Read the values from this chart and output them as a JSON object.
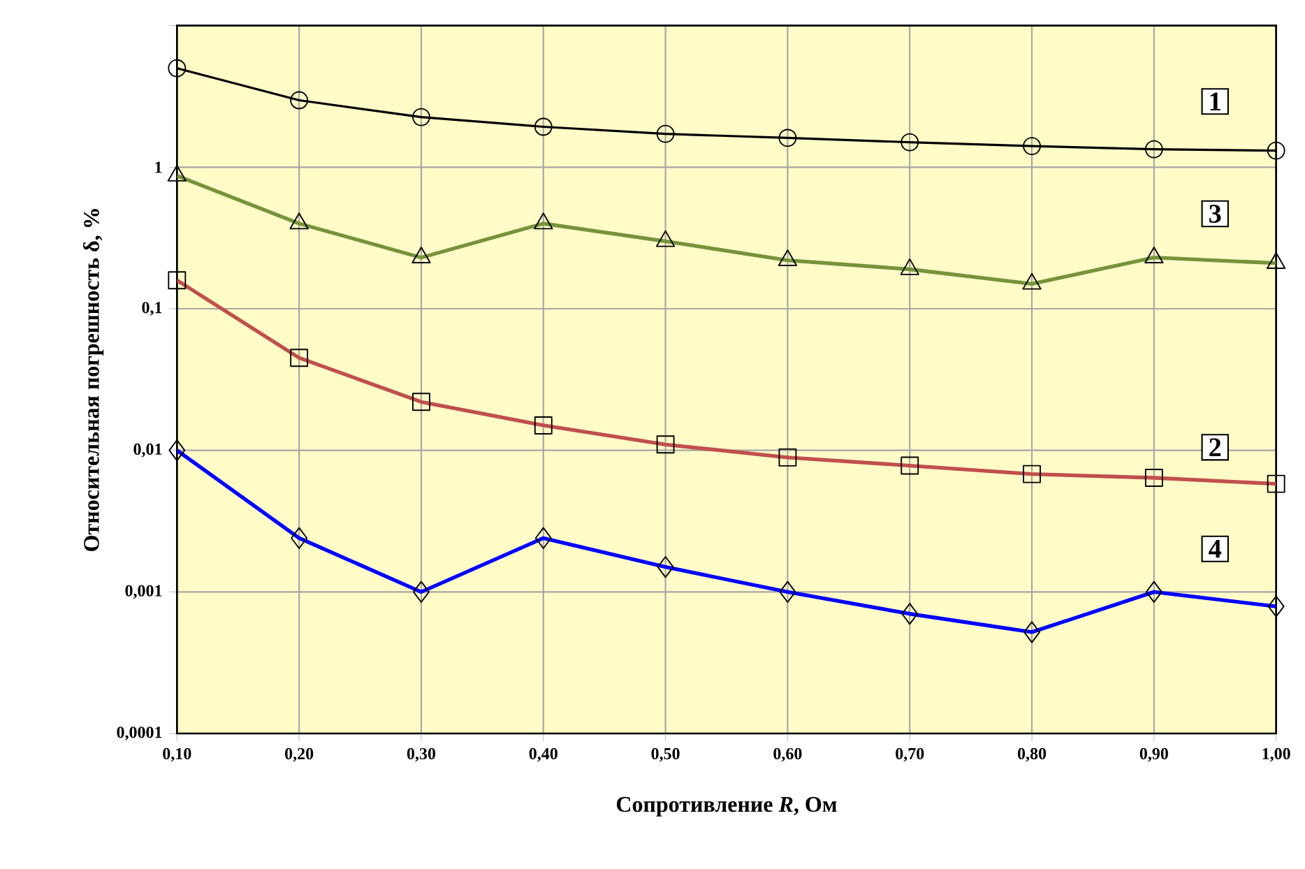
{
  "chart_data": {
    "type": "line",
    "xlabel": "Сопротивление *R*, Ом",
    "ylabel": "Относительная погрешность δ, %",
    "x": [
      0.1,
      0.2,
      0.3,
      0.4,
      0.5,
      0.6,
      0.7,
      0.8,
      0.9,
      1.0
    ],
    "series": [
      {
        "name": "1",
        "color": "#000000",
        "marker": "circle",
        "values": [
          5.0,
          2.97,
          2.26,
          1.93,
          1.72,
          1.61,
          1.5,
          1.41,
          1.34,
          1.31
        ]
      },
      {
        "name": "2",
        "color": "#c0504d",
        "marker": "square",
        "values": [
          0.159,
          0.045,
          0.022,
          0.015,
          0.011,
          0.0089,
          0.0078,
          0.0068,
          0.0064,
          0.0058
        ]
      },
      {
        "name": "3",
        "color": "#77933c",
        "marker": "triangle",
        "values": [
          0.87,
          0.4,
          0.23,
          0.4,
          0.3,
          0.22,
          0.19,
          0.15,
          0.23,
          0.21
        ]
      },
      {
        "name": "4",
        "color": "#0000ff",
        "marker": "diamond",
        "values": [
          0.01,
          0.0024,
          0.001,
          0.0024,
          0.0015,
          0.001,
          0.0007,
          0.00052,
          0.001,
          0.00079
        ]
      }
    ],
    "log": "y",
    "grid": true,
    "xlim": [
      0.1,
      1.0
    ],
    "ylim": [
      0.0001,
      10
    ],
    "xticks": [
      {
        "value": 0.1,
        "label": "0,10"
      },
      {
        "value": 0.2,
        "label": "0,20"
      },
      {
        "value": 0.3,
        "label": "0,30"
      },
      {
        "value": 0.4,
        "label": "0,40"
      },
      {
        "value": 0.5,
        "label": "0,50"
      },
      {
        "value": 0.6,
        "label": "0,60"
      },
      {
        "value": 0.7,
        "label": "0,70"
      },
      {
        "value": 0.8,
        "label": "0,80"
      },
      {
        "value": 0.9,
        "label": "0,90"
      },
      {
        "value": 1.0,
        "label": "1,00"
      }
    ],
    "yticks": [
      {
        "value": 0.0001,
        "label": "0,0001"
      },
      {
        "value": 0.001,
        "label": "0,001"
      },
      {
        "value": 0.01,
        "label": "0,01"
      },
      {
        "value": 0.1,
        "label": "0,1"
      },
      1,
      {
        "value": 10,
        "label": null
      }
    ]
  }
}
